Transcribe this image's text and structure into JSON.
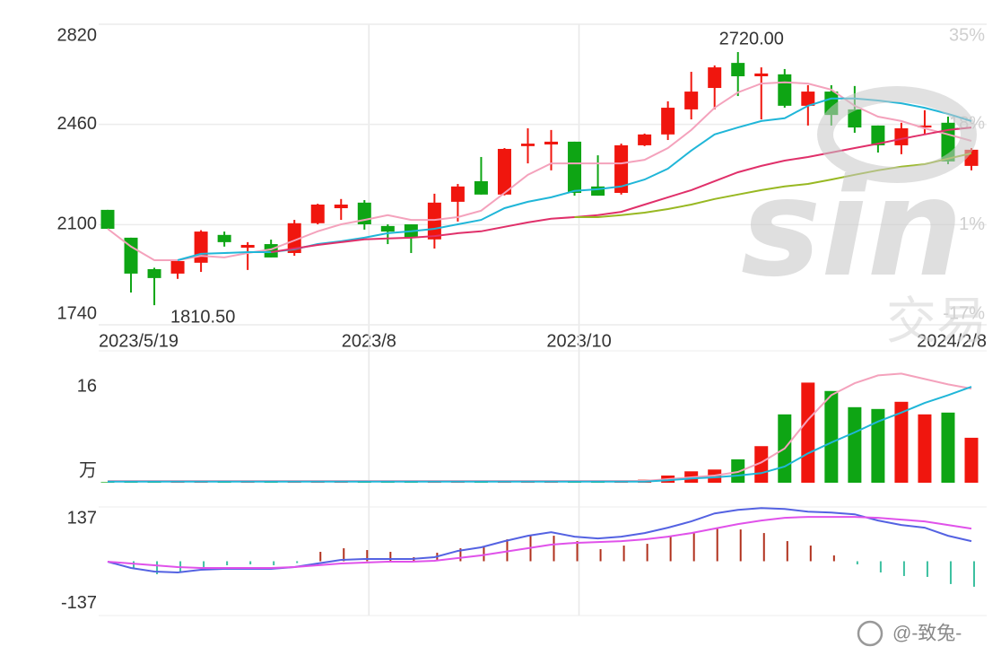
{
  "chart_data": [
    {
      "type": "candlestick",
      "categories": [
        "2023/5/19",
        null,
        null,
        null,
        null,
        null,
        null,
        null,
        null,
        null,
        null,
        "2023/8",
        null,
        null,
        null,
        null,
        null,
        null,
        null,
        null,
        "2023/10",
        null,
        null,
        null,
        null,
        null,
        null,
        null,
        null,
        null,
        null,
        null,
        null,
        null,
        null,
        null,
        null,
        "2024/2/8"
      ],
      "open": [
        2153,
        2053,
        1940,
        1924,
        1963,
        2063,
        2017,
        2030,
        1998,
        2105,
        2159,
        2179,
        2095,
        2101,
        2047,
        2182,
        2256,
        2208,
        2382,
        2388,
        2398,
        2237,
        2214,
        2385,
        2424,
        2514,
        2591,
        2681,
        2633,
        2640,
        2527,
        2578,
        2514,
        2456,
        2385,
        2449,
        2466,
        2311
      ],
      "high": [
        2153,
        2053,
        1945,
        1969,
        2080,
        2075,
        2037,
        2046,
        2117,
        2175,
        2192,
        2188,
        2101,
        2101,
        2211,
        2246,
        2343,
        2375,
        2446,
        2440,
        2398,
        2349,
        2391,
        2427,
        2543,
        2649,
        2672,
        2720,
        2665,
        2659,
        2601,
        2601,
        2598,
        2456,
        2466,
        2511,
        2488,
        2375
      ],
      "low": [
        2085,
        1856,
        1810.5,
        1905,
        1930,
        2021,
        1937,
        1982,
        1988,
        2101,
        2117,
        2082,
        2030,
        1998,
        2014,
        2111,
        2208,
        2205,
        2320,
        2295,
        2204,
        2204,
        2208,
        2382,
        2404,
        2478,
        2514,
        2562,
        2478,
        2520,
        2456,
        2456,
        2430,
        2359,
        2353,
        2424,
        2317,
        2295
      ],
      "close": [
        2085,
        1924,
        1908,
        1969,
        2075,
        2037,
        2027,
        1982,
        2105,
        2172,
        2172,
        2101,
        2075,
        2053,
        2179,
        2237,
        2208,
        2372,
        2391,
        2398,
        2214,
        2204,
        2385,
        2424,
        2520,
        2578,
        2665,
        2633,
        2643,
        2527,
        2578,
        2494,
        2449,
        2385,
        2446,
        2456,
        2327,
        2369
      ],
      "up_color": "#f0160e",
      "down_color": "#0ea514",
      "lines": [
        {
          "color": "#f4a2bc",
          "values": [
            2085,
            2021,
            1972,
            1972,
            1988,
            1982,
            1998,
            2011,
            2043,
            2076,
            2101,
            2117,
            2134,
            2117,
            2117,
            2127,
            2150,
            2214,
            2279,
            2320,
            2320,
            2320,
            2320,
            2333,
            2375,
            2440,
            2520,
            2575,
            2607,
            2611,
            2607,
            2585,
            2527,
            2488,
            2472,
            2446,
            2424,
            2401
          ]
        },
        {
          "color": "#20b6d8",
          "values": [
            null,
            null,
            null,
            1972,
            1995,
            1998,
            2001,
            2001,
            2011,
            2030,
            2040,
            2053,
            2069,
            2076,
            2085,
            2101,
            2117,
            2159,
            2182,
            2198,
            2221,
            2227,
            2237,
            2262,
            2301,
            2366,
            2424,
            2449,
            2472,
            2482,
            2527,
            2553,
            2553,
            2546,
            2536,
            2520,
            2498,
            2472
          ]
        },
        {
          "color": "#e0306a",
          "values": [
            null,
            null,
            null,
            null,
            null,
            null,
            null,
            2001,
            2014,
            2027,
            2037,
            2047,
            2050,
            2053,
            2059,
            2069,
            2076,
            2092,
            2108,
            2121,
            2127,
            2134,
            2146,
            2172,
            2198,
            2224,
            2256,
            2288,
            2311,
            2330,
            2343,
            2359,
            2375,
            2391,
            2408,
            2424,
            2440,
            2449
          ]
        },
        {
          "color": "#98b822",
          "values": [
            null,
            null,
            null,
            null,
            null,
            null,
            null,
            null,
            null,
            null,
            null,
            null,
            null,
            null,
            null,
            null,
            null,
            null,
            null,
            null,
            2127,
            2127,
            2134,
            2143,
            2156,
            2172,
            2192,
            2208,
            2224,
            2237,
            2246,
            2262,
            2279,
            2295,
            2308,
            2317,
            2337,
            2356
          ]
        }
      ],
      "annotations": [
        {
          "value": 2720,
          "label": "2720.00"
        },
        {
          "value": 1810.5,
          "label": "1810.50"
        }
      ],
      "ylim": [
        1740,
        2820
      ],
      "yticks": [
        2820,
        2460,
        2100,
        1740
      ],
      "grid": true,
      "y2lim": [
        -16.7,
        35
      ],
      "y2ticks": [
        {
          "value": 35,
          "label": "35%"
        },
        {
          "value": 17.8,
          "label": "18%"
        },
        {
          "value": 0.5,
          "label": "1%"
        },
        {
          "value": -16.7,
          "label": "-17%"
        }
      ]
    },
    {
      "type": "volume",
      "values": [
        0.1,
        0.1,
        0.1,
        0.1,
        0.1,
        0.1,
        0.1,
        0.1,
        0.1,
        0.1,
        0.1,
        0.1,
        0.1,
        0.1,
        0.1,
        0.1,
        0.1,
        0.1,
        0.1,
        0.1,
        0.3,
        0.3,
        0.3,
        0.5,
        1.2,
        1.9,
        2.2,
        3.9,
        6.1,
        11.4,
        16.7,
        15.3,
        12.6,
        12.3,
        13.5,
        11.4,
        11.7,
        7.5
      ],
      "lines": [
        {
          "color": "#f4a2bc",
          "values": [
            0.3,
            0.3,
            0.3,
            0.3,
            0.3,
            0.3,
            0.3,
            0.3,
            0.3,
            0.3,
            0.3,
            0.3,
            0.3,
            0.3,
            0.3,
            0.3,
            0.3,
            0.3,
            0.3,
            0.3,
            0.3,
            0.3,
            0.3,
            0.3,
            0.6,
            0.9,
            1.2,
            1.8,
            3.4,
            5.7,
            10.5,
            14.6,
            16.6,
            17.9,
            18.2,
            17.3,
            16.4,
            15.7
          ]
        },
        {
          "color": "#20b6d8",
          "values": [
            0.2,
            0.2,
            0.2,
            0.2,
            0.2,
            0.2,
            0.2,
            0.2,
            0.2,
            0.2,
            0.2,
            0.2,
            0.2,
            0.2,
            0.2,
            0.2,
            0.2,
            0.2,
            0.2,
            0.2,
            0.2,
            0.2,
            0.2,
            0.2,
            0.4,
            0.7,
            0.9,
            1.2,
            1.6,
            2.7,
            4.9,
            6.7,
            8.4,
            10.2,
            11.7,
            13.3,
            14.6,
            16.0
          ]
        }
      ],
      "unit": "万",
      "ylim": [
        0,
        22
      ],
      "yticks": [
        16
      ],
      "grid": false
    },
    {
      "type": "macd",
      "values": [
        0,
        -24.5,
        -41.8,
        -36.1,
        -18.7,
        -13,
        -10.1,
        -13,
        -5.8,
        30.3,
        41.8,
        36.1,
        30.3,
        13,
        27.4,
        41.8,
        47.6,
        70.7,
        85.1,
        82.2,
        64.9,
        38.9,
        50.5,
        56.2,
        82.2,
        90.9,
        105.3,
        102.4,
        90.9,
        64.9,
        50.5,
        18.7,
        -10.1,
        -36.1,
        -47.6,
        -50.5,
        -73.5,
        -82.2
      ],
      "up_color": "#b0301c",
      "down_color": "#3cc0a0",
      "lines": [
        {
          "color": "#5462e2",
          "values": [
            -1.4,
            -21.6,
            -33.2,
            -36.1,
            -27.4,
            -24.5,
            -24.5,
            -24.5,
            -18.7,
            -7.2,
            4.3,
            7.2,
            7.2,
            7.2,
            13,
            33.2,
            44.7,
            64.9,
            82.2,
            93.7,
            79.3,
            73.5,
            79.3,
            90.9,
            108.2,
            128.3,
            154.3,
            165.8,
            171.6,
            168.7,
            160,
            157.1,
            151.4,
            131.2,
            116.8,
            108.2,
            82.2,
            64.9
          ]
        },
        {
          "color": "#e052ea",
          "values": [
            -1.4,
            -7.2,
            -13,
            -18.7,
            -21.6,
            -21.6,
            -21.6,
            -21.6,
            -18.7,
            -13,
            -7.2,
            -4.3,
            -1.4,
            -1.4,
            1.4,
            10.1,
            18.7,
            30.3,
            41.8,
            53.4,
            59.1,
            62,
            64.9,
            70.7,
            79.3,
            90.9,
            105.3,
            119.7,
            131.2,
            139.9,
            142.8,
            142.8,
            142.8,
            139.9,
            134.1,
            128.3,
            116.8,
            105.3
          ]
        }
      ],
      "ylim": [
        -175,
        175
      ],
      "yticks": [
        137,
        -137
      ],
      "grid": false
    }
  ],
  "watermark": {
    "logo": "sin",
    "text": "交易"
  },
  "credit": "@-致兔-"
}
